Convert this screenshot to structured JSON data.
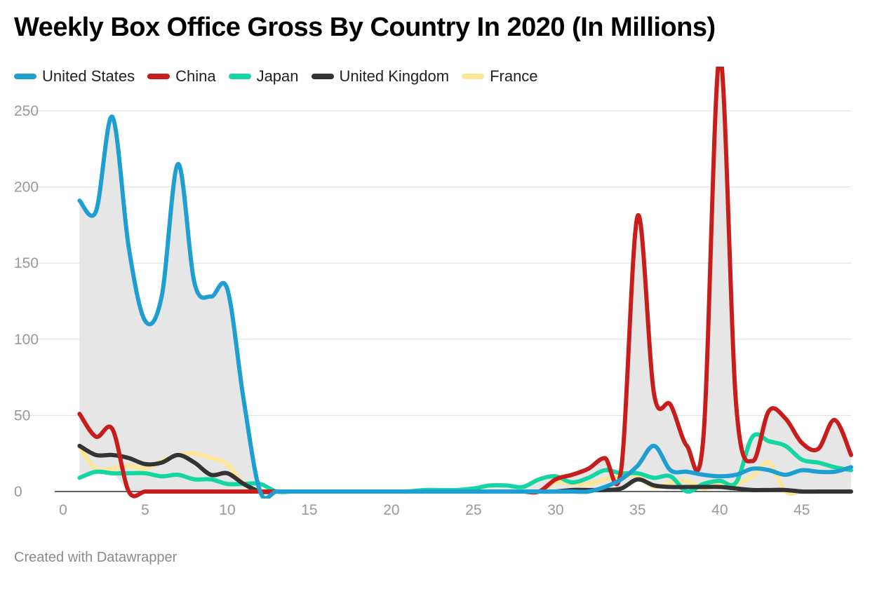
{
  "title": "Weekly Box Office Gross By Country In 2020 (In Millions)",
  "footer": "Created with Datawrapper",
  "chart_data": {
    "type": "line",
    "title": "Weekly Box Office Gross By Country In 2020 (In Millions)",
    "xlabel": "",
    "ylabel": "",
    "xlim": [
      0,
      48
    ],
    "ylim": [
      0,
      250
    ],
    "x_ticks": [
      0,
      5,
      10,
      15,
      20,
      25,
      30,
      35,
      40,
      45
    ],
    "y_ticks": [
      0,
      50,
      100,
      150,
      200,
      250
    ],
    "grid": "horizontal",
    "legend_position": "top-left",
    "range_fill_color": "#e6e6e6",
    "x": [
      1,
      2,
      3,
      4,
      5,
      6,
      7,
      8,
      9,
      10,
      11,
      12,
      13,
      14,
      15,
      16,
      17,
      18,
      19,
      20,
      21,
      22,
      23,
      24,
      25,
      26,
      27,
      28,
      29,
      30,
      31,
      32,
      33,
      34,
      35,
      36,
      37,
      38,
      39,
      40,
      41,
      42,
      43,
      44,
      45,
      46,
      47,
      48
    ],
    "series": [
      {
        "name": "United States",
        "color": "#1f9ed1",
        "values": [
          191,
          184,
          246,
          160,
          112,
          128,
          215,
          137,
          128,
          133,
          60,
          0,
          0,
          0,
          0,
          0,
          0,
          0,
          0,
          0,
          0,
          0,
          0,
          0,
          0,
          0,
          0,
          0,
          0,
          0,
          0,
          0,
          3,
          8,
          17,
          30,
          14,
          13,
          11,
          10,
          11,
          15,
          14,
          11,
          14,
          13,
          13,
          16
        ]
      },
      {
        "name": "China",
        "color": "#c71e1d",
        "values": [
          51,
          36,
          41,
          0,
          0,
          0,
          0,
          0,
          0,
          0,
          0,
          0,
          0,
          0,
          0,
          0,
          0,
          0,
          0,
          0,
          0,
          0,
          0,
          0,
          0,
          0,
          0,
          0,
          0,
          8,
          11,
          15,
          22,
          15,
          181,
          64,
          57,
          30,
          35,
          286,
          57,
          20,
          53,
          48,
          32,
          28,
          47,
          24
        ]
      },
      {
        "name": "Japan",
        "color": "#15d5a2",
        "values": [
          9,
          13,
          12,
          12,
          12,
          10,
          11,
          8,
          8,
          5,
          5,
          5,
          0,
          0,
          0,
          0,
          0,
          0,
          0,
          0,
          0,
          1,
          1,
          1,
          2,
          4,
          4,
          3,
          8,
          10,
          6,
          9,
          14,
          12,
          12,
          9,
          10,
          0,
          5,
          7,
          6,
          36,
          33,
          30,
          21,
          19,
          16,
          14
        ]
      },
      {
        "name": "United Kingdom",
        "color": "#333333",
        "values": [
          30,
          24,
          24,
          22,
          18,
          19,
          24,
          19,
          11,
          12,
          5,
          0,
          0,
          0,
          0,
          0,
          0,
          0,
          0,
          0,
          0,
          0,
          0,
          0,
          0,
          0,
          0,
          0,
          0,
          0,
          1,
          1,
          1,
          2,
          8,
          4,
          3,
          3,
          3,
          3,
          2,
          1,
          1,
          1,
          0,
          0,
          0,
          0
        ]
      },
      {
        "name": "France",
        "color": "#fde696",
        "values": [
          29,
          15,
          15,
          17,
          15,
          20,
          24,
          25,
          22,
          18,
          5,
          0,
          0,
          0,
          0,
          0,
          0,
          0,
          0,
          0,
          0,
          0,
          0,
          0,
          0,
          0,
          0,
          0,
          0,
          6,
          5,
          5,
          8,
          10,
          10,
          3,
          6,
          7,
          2,
          5,
          5,
          10,
          19,
          0,
          0,
          0,
          0,
          0
        ]
      }
    ]
  }
}
